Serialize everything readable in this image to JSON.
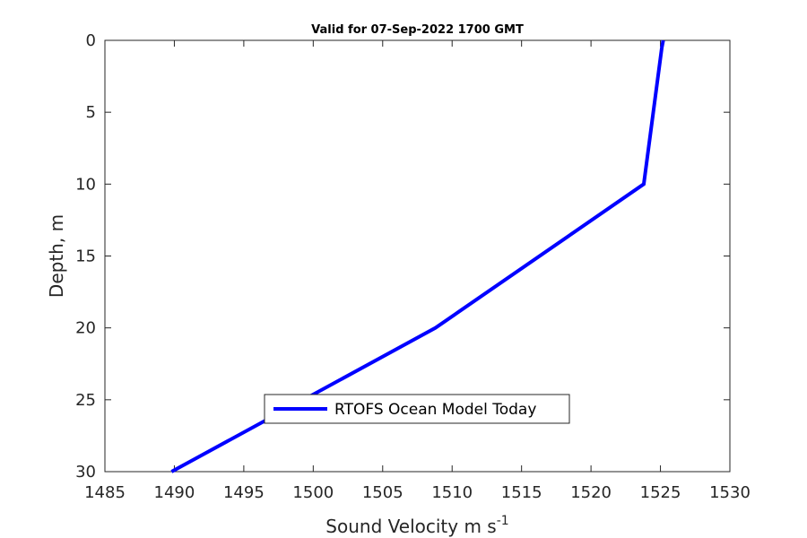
{
  "chart_data": {
    "type": "line",
    "title": "Valid for 07-Sep-2022 1700 GMT",
    "xlabel": "Sound Velocity m s",
    "xlabel_superscript": "-1",
    "ylabel": "Depth, m",
    "xlim": [
      1485,
      1530
    ],
    "ylim": [
      0,
      30
    ],
    "y_reversed": true,
    "x_ticks": [
      1485,
      1490,
      1495,
      1500,
      1505,
      1510,
      1515,
      1520,
      1525,
      1530
    ],
    "y_ticks": [
      0,
      5,
      10,
      15,
      20,
      25,
      30
    ],
    "grid": false,
    "legend_position": "lower-center",
    "series": [
      {
        "name": "RTOFS Ocean Model Today",
        "color": "#0000ff",
        "x": [
          1525.2,
          1525.1,
          1523.8,
          1508.8,
          1489.8
        ],
        "y": [
          0,
          0.5,
          10,
          20,
          30
        ]
      }
    ]
  }
}
